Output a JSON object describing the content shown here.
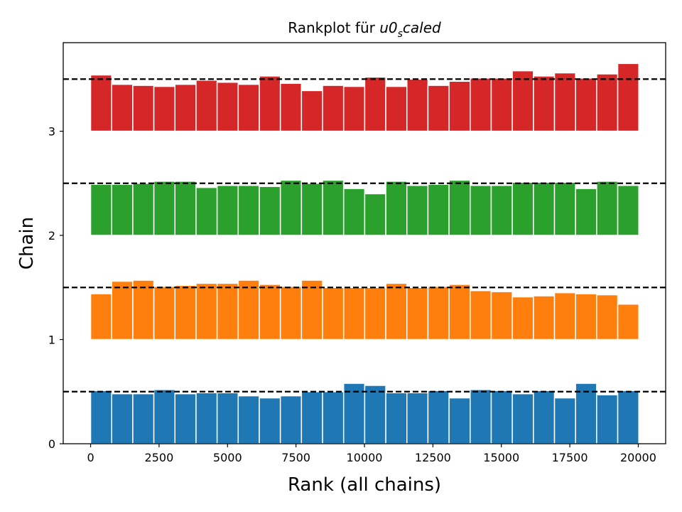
{
  "chart_data": {
    "type": "bar",
    "title": "Rankplot für ",
    "title_math": "u0",
    "title_math_sub": "s",
    "title_math_rest": "caled",
    "xlabel": "Rank (all chains)",
    "ylabel": "Chain",
    "xlim": [
      -1000,
      21000
    ],
    "ylim": [
      0,
      3.85
    ],
    "x_ticks": [
      0,
      2500,
      5000,
      7500,
      10000,
      12500,
      15000,
      17500,
      20000
    ],
    "y_ticks": [
      0,
      1,
      2,
      3
    ],
    "bin_start": 0,
    "bin_width": 770,
    "reference_lines": [
      0.5,
      1.5,
      2.5,
      3.5
    ],
    "grid": false,
    "series": [
      {
        "offset": 0,
        "color": "#1f77b4",
        "values": [
          0.51,
          0.48,
          0.48,
          0.52,
          0.48,
          0.49,
          0.49,
          0.46,
          0.44,
          0.46,
          0.5,
          0.5,
          0.58,
          0.56,
          0.49,
          0.49,
          0.51,
          0.44,
          0.52,
          0.51,
          0.48,
          0.51,
          0.44,
          0.58,
          0.47,
          0.51
        ]
      },
      {
        "offset": 1,
        "color": "#ff7f0e",
        "values": [
          0.44,
          0.56,
          0.57,
          0.51,
          0.52,
          0.54,
          0.54,
          0.57,
          0.53,
          0.51,
          0.57,
          0.5,
          0.5,
          0.5,
          0.54,
          0.5,
          0.51,
          0.53,
          0.47,
          0.46,
          0.41,
          0.42,
          0.45,
          0.44,
          0.43,
          0.34
        ]
      },
      {
        "offset": 2,
        "color": "#2ca02c",
        "values": [
          0.49,
          0.49,
          0.5,
          0.52,
          0.52,
          0.46,
          0.48,
          0.48,
          0.47,
          0.53,
          0.5,
          0.53,
          0.45,
          0.4,
          0.52,
          0.48,
          0.49,
          0.53,
          0.48,
          0.48,
          0.51,
          0.51,
          0.51,
          0.45,
          0.52,
          0.48
        ]
      },
      {
        "offset": 3,
        "color": "#d62728",
        "values": [
          0.54,
          0.45,
          0.44,
          0.43,
          0.45,
          0.49,
          0.47,
          0.45,
          0.53,
          0.46,
          0.39,
          0.44,
          0.43,
          0.52,
          0.43,
          0.5,
          0.44,
          0.48,
          0.51,
          0.51,
          0.58,
          0.53,
          0.56,
          0.51,
          0.55,
          0.65
        ]
      }
    ]
  }
}
